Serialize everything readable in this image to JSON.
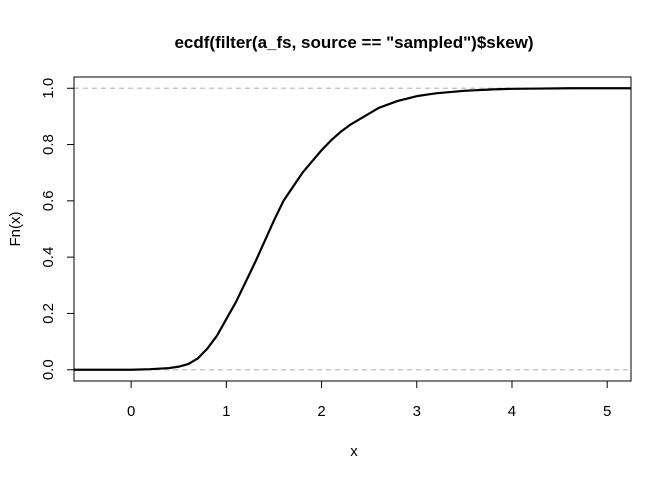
{
  "chart_data": {
    "type": "line",
    "subtype": "ecdf",
    "title": "ecdf(filter(a_fs, source == \"sampled\")$skew)",
    "xlabel": "x",
    "ylabel": "Fn(x)",
    "xlim": [
      -0.6,
      5.25
    ],
    "ylim": [
      -0.04,
      1.04
    ],
    "xticks": [
      0,
      1,
      2,
      3,
      4,
      5
    ],
    "xtick_labels": [
      "0",
      "1",
      "2",
      "3",
      "4",
      "5"
    ],
    "yticks": [
      0.0,
      0.2,
      0.4,
      0.6,
      0.8,
      1.0
    ],
    "ytick_labels": [
      "0.0",
      "0.2",
      "0.4",
      "0.6",
      "0.8",
      "1.0"
    ],
    "reference_lines": [
      0,
      1
    ],
    "grid": false,
    "series": [
      {
        "x": [
          -0.6,
          0.0,
          0.2,
          0.4,
          0.5,
          0.6,
          0.7,
          0.8,
          0.9,
          1.0,
          1.1,
          1.2,
          1.3,
          1.4,
          1.5,
          1.6,
          1.7,
          1.8,
          1.9,
          2.0,
          2.1,
          2.2,
          2.3,
          2.4,
          2.5,
          2.6,
          2.8,
          3.0,
          3.2,
          3.5,
          3.8,
          4.0,
          4.3,
          4.6,
          5.25
        ],
        "y": [
          0.0,
          0.0,
          0.002,
          0.006,
          0.011,
          0.02,
          0.04,
          0.075,
          0.12,
          0.18,
          0.24,
          0.31,
          0.38,
          0.455,
          0.53,
          0.6,
          0.65,
          0.7,
          0.74,
          0.78,
          0.815,
          0.845,
          0.87,
          0.89,
          0.91,
          0.93,
          0.955,
          0.972,
          0.982,
          0.991,
          0.996,
          0.998,
          0.999,
          1.0,
          1.0
        ]
      }
    ]
  }
}
